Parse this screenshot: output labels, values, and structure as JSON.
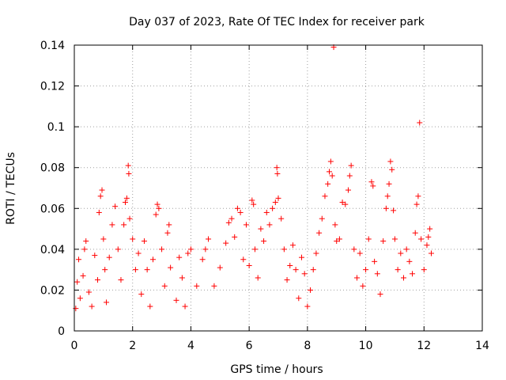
{
  "chart_data": {
    "type": "scatter",
    "title": "Day 037 of 2023, Rate Of TEC Index for receiver park",
    "xlabel": "GPS time / hours",
    "ylabel": "ROTI / TECUs",
    "xlim": [
      0,
      14
    ],
    "ylim": [
      0,
      0.14
    ],
    "x_ticks": [
      0,
      2,
      4,
      6,
      8,
      10,
      12,
      14
    ],
    "x_tick_labels": [
      "0",
      "2",
      "4",
      "6",
      "8",
      "10",
      "12",
      "14"
    ],
    "y_ticks": [
      0,
      0.02,
      0.04,
      0.06,
      0.08,
      0.1,
      0.12,
      0.14
    ],
    "y_tick_labels": [
      "0",
      "0.02",
      "0.04",
      "0.06",
      "0.08",
      "0.1",
      "0.12",
      "0.14"
    ],
    "grid": true,
    "marker": "plus",
    "color": "#ff0000",
    "series": [
      {
        "points": [
          [
            0.05,
            0.011
          ],
          [
            0.1,
            0.024
          ],
          [
            0.15,
            0.035
          ],
          [
            0.2,
            0.016
          ],
          [
            0.3,
            0.027
          ],
          [
            0.35,
            0.04
          ],
          [
            0.4,
            0.044
          ],
          [
            0.5,
            0.019
          ],
          [
            0.6,
            0.012
          ],
          [
            0.7,
            0.037
          ],
          [
            0.8,
            0.025
          ],
          [
            0.85,
            0.058
          ],
          [
            0.9,
            0.066
          ],
          [
            0.95,
            0.069
          ],
          [
            1.0,
            0.045
          ],
          [
            1.05,
            0.03
          ],
          [
            1.1,
            0.014
          ],
          [
            1.2,
            0.036
          ],
          [
            1.3,
            0.052
          ],
          [
            1.4,
            0.061
          ],
          [
            1.5,
            0.04
          ],
          [
            1.6,
            0.025
          ],
          [
            1.7,
            0.052
          ],
          [
            1.75,
            0.063
          ],
          [
            1.8,
            0.065
          ],
          [
            1.85,
            0.081
          ],
          [
            1.87,
            0.077
          ],
          [
            1.9,
            0.055
          ],
          [
            2.0,
            0.045
          ],
          [
            2.1,
            0.03
          ],
          [
            2.2,
            0.038
          ],
          [
            2.3,
            0.018
          ],
          [
            2.4,
            0.044
          ],
          [
            2.5,
            0.03
          ],
          [
            2.6,
            0.012
          ],
          [
            2.7,
            0.035
          ],
          [
            2.8,
            0.057
          ],
          [
            2.85,
            0.062
          ],
          [
            2.9,
            0.06
          ],
          [
            3.0,
            0.04
          ],
          [
            3.1,
            0.022
          ],
          [
            3.2,
            0.048
          ],
          [
            3.25,
            0.052
          ],
          [
            3.3,
            0.031
          ],
          [
            3.5,
            0.015
          ],
          [
            3.6,
            0.036
          ],
          [
            3.7,
            0.026
          ],
          [
            3.8,
            0.012
          ],
          [
            3.9,
            0.038
          ],
          [
            4.0,
            0.04
          ],
          [
            4.2,
            0.022
          ],
          [
            4.4,
            0.035
          ],
          [
            4.5,
            0.04
          ],
          [
            4.6,
            0.045
          ],
          [
            4.8,
            0.022
          ],
          [
            5.0,
            0.031
          ],
          [
            5.2,
            0.043
          ],
          [
            5.3,
            0.053
          ],
          [
            5.4,
            0.055
          ],
          [
            5.5,
            0.046
          ],
          [
            5.6,
            0.06
          ],
          [
            5.7,
            0.058
          ],
          [
            5.8,
            0.035
          ],
          [
            5.9,
            0.052
          ],
          [
            6.0,
            0.032
          ],
          [
            6.1,
            0.064
          ],
          [
            6.15,
            0.062
          ],
          [
            6.2,
            0.04
          ],
          [
            6.3,
            0.026
          ],
          [
            6.4,
            0.05
          ],
          [
            6.5,
            0.044
          ],
          [
            6.6,
            0.058
          ],
          [
            6.7,
            0.052
          ],
          [
            6.8,
            0.06
          ],
          [
            6.9,
            0.063
          ],
          [
            6.95,
            0.08
          ],
          [
            6.97,
            0.077
          ],
          [
            7.0,
            0.065
          ],
          [
            7.1,
            0.055
          ],
          [
            7.2,
            0.04
          ],
          [
            7.3,
            0.025
          ],
          [
            7.4,
            0.032
          ],
          [
            7.5,
            0.042
          ],
          [
            7.6,
            0.03
          ],
          [
            7.7,
            0.016
          ],
          [
            7.8,
            0.036
          ],
          [
            7.9,
            0.028
          ],
          [
            8.0,
            0.012
          ],
          [
            8.1,
            0.02
          ],
          [
            8.2,
            0.03
          ],
          [
            8.3,
            0.038
          ],
          [
            8.4,
            0.048
          ],
          [
            8.5,
            0.055
          ],
          [
            8.6,
            0.066
          ],
          [
            8.7,
            0.072
          ],
          [
            8.75,
            0.078
          ],
          [
            8.8,
            0.083
          ],
          [
            8.85,
            0.076
          ],
          [
            8.9,
            0.139
          ],
          [
            8.95,
            0.052
          ],
          [
            9.0,
            0.044
          ],
          [
            9.1,
            0.045
          ],
          [
            9.2,
            0.063
          ],
          [
            9.3,
            0.062
          ],
          [
            9.4,
            0.069
          ],
          [
            9.45,
            0.076
          ],
          [
            9.5,
            0.081
          ],
          [
            9.6,
            0.04
          ],
          [
            9.7,
            0.026
          ],
          [
            9.8,
            0.038
          ],
          [
            9.9,
            0.022
          ],
          [
            10.0,
            0.03
          ],
          [
            10.1,
            0.045
          ],
          [
            10.2,
            0.073
          ],
          [
            10.25,
            0.071
          ],
          [
            10.3,
            0.034
          ],
          [
            10.4,
            0.028
          ],
          [
            10.5,
            0.018
          ],
          [
            10.6,
            0.044
          ],
          [
            10.7,
            0.06
          ],
          [
            10.75,
            0.066
          ],
          [
            10.8,
            0.072
          ],
          [
            10.85,
            0.083
          ],
          [
            10.9,
            0.079
          ],
          [
            10.95,
            0.059
          ],
          [
            11.0,
            0.045
          ],
          [
            11.1,
            0.03
          ],
          [
            11.2,
            0.038
          ],
          [
            11.3,
            0.026
          ],
          [
            11.4,
            0.04
          ],
          [
            11.5,
            0.034
          ],
          [
            11.6,
            0.028
          ],
          [
            11.7,
            0.048
          ],
          [
            11.75,
            0.062
          ],
          [
            11.8,
            0.066
          ],
          [
            11.85,
            0.102
          ],
          [
            11.9,
            0.045
          ],
          [
            12.0,
            0.03
          ],
          [
            12.1,
            0.042
          ],
          [
            12.15,
            0.046
          ],
          [
            12.2,
            0.05
          ],
          [
            12.25,
            0.038
          ]
        ]
      }
    ]
  }
}
